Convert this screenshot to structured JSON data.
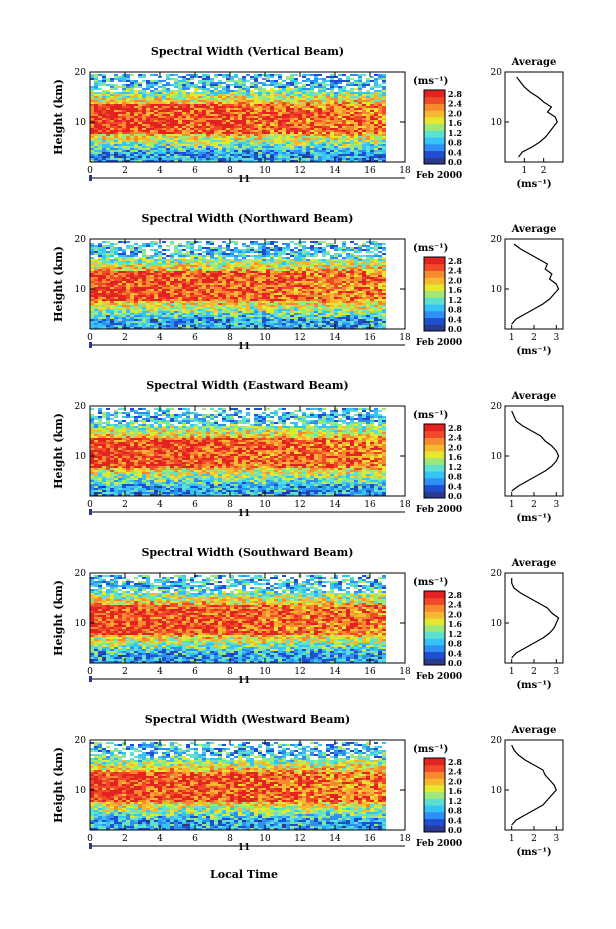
{
  "figure": {
    "date_label": "11",
    "month_year_label": "Feb 2000",
    "xlabel": "Local Time",
    "ylabel": "Height (km)",
    "colorbar_unit": "(ms⁻¹)",
    "average_title": "Average",
    "average_xlabel": "(ms⁻¹)"
  },
  "colors": {
    "colormap": [
      "#2a3a8c",
      "#1f4fd0",
      "#2f8ff5",
      "#35c4f5",
      "#5de0d0",
      "#9ee87a",
      "#e4e830",
      "#f5b830",
      "#f58a2f",
      "#f04a28",
      "#e32222"
    ]
  },
  "chart_data": [
    {
      "type": "heatmap",
      "title": "Spectral Width (Vertical Beam)",
      "xlim": [
        0,
        18
      ],
      "xticks": [
        "0",
        "2",
        "4",
        "6",
        "8",
        "10",
        "12",
        "14",
        "16",
        "18"
      ],
      "ylim": [
        2,
        20
      ],
      "yticks": [
        "10",
        "20"
      ],
      "data_x_end": 16.8,
      "colorbar_ticks": [
        "0.0",
        "0.4",
        "0.8",
        "1.2",
        "1.6",
        "2.0",
        "2.4",
        "2.8"
      ],
      "average_profile": {
        "xlim": [
          0,
          3
        ],
        "xticks": [
          "1",
          "2"
        ],
        "ylim": [
          2,
          20
        ],
        "yticks": [
          "10",
          "20"
        ],
        "height_km": [
          3,
          4,
          5,
          6,
          7,
          8,
          9,
          10,
          11,
          12,
          13,
          14,
          15,
          16,
          17,
          18,
          19
        ],
        "width_ms": [
          0.7,
          0.9,
          1.4,
          1.8,
          2.1,
          2.3,
          2.5,
          2.7,
          2.6,
          2.2,
          2.4,
          2.0,
          1.7,
          1.3,
          1.0,
          0.8,
          0.6
        ]
      }
    },
    {
      "type": "heatmap",
      "title": "Spectral Width (Northward Beam)",
      "xlim": [
        0,
        18
      ],
      "xticks": [
        "0",
        "2",
        "4",
        "6",
        "8",
        "10",
        "12",
        "14",
        "16",
        "18"
      ],
      "ylim": [
        2,
        20
      ],
      "yticks": [
        "10",
        "20"
      ],
      "data_x_end": 16.8,
      "colorbar_ticks": [
        "0.0",
        "0.4",
        "0.8",
        "1.2",
        "1.6",
        "2.0",
        "2.4",
        "2.8"
      ],
      "average_profile": {
        "xlim": [
          0.7,
          3.3
        ],
        "xticks": [
          "1",
          "2",
          "3"
        ],
        "ylim": [
          2,
          20
        ],
        "yticks": [
          "10",
          "20"
        ],
        "height_km": [
          3,
          4,
          5,
          6,
          7,
          8,
          9,
          10,
          11,
          12,
          13,
          14,
          15,
          16,
          17,
          18,
          19
        ],
        "width_ms": [
          1.0,
          1.2,
          1.6,
          2.0,
          2.4,
          2.7,
          2.9,
          3.1,
          3.0,
          2.7,
          2.8,
          2.5,
          2.6,
          2.2,
          1.8,
          1.4,
          1.1
        ]
      }
    },
    {
      "type": "heatmap",
      "title": "Spectral Width (Eastward Beam)",
      "xlim": [
        0,
        18
      ],
      "xticks": [
        "0",
        "2",
        "4",
        "6",
        "8",
        "10",
        "12",
        "14",
        "16",
        "18"
      ],
      "ylim": [
        2,
        20
      ],
      "yticks": [
        "10",
        "20"
      ],
      "data_x_end": 16.8,
      "colorbar_ticks": [
        "0.0",
        "0.4",
        "0.8",
        "1.2",
        "1.6",
        "2.0",
        "2.4",
        "2.8"
      ],
      "average_profile": {
        "xlim": [
          0.7,
          3.3
        ],
        "xticks": [
          "1",
          "2",
          "3"
        ],
        "ylim": [
          2,
          20
        ],
        "yticks": [
          "10",
          "20"
        ],
        "height_km": [
          3,
          4,
          5,
          6,
          7,
          8,
          9,
          10,
          11,
          12,
          13,
          14,
          15,
          16,
          17,
          18,
          19
        ],
        "width_ms": [
          1.0,
          1.3,
          1.7,
          2.1,
          2.5,
          2.8,
          3.0,
          3.1,
          3.0,
          2.8,
          2.5,
          2.3,
          1.9,
          1.5,
          1.2,
          1.1,
          1.0
        ]
      }
    },
    {
      "type": "heatmap",
      "title": "Spectral Width (Southward Beam)",
      "xlim": [
        0,
        18
      ],
      "xticks": [
        "0",
        "2",
        "4",
        "6",
        "8",
        "10",
        "12",
        "14",
        "16",
        "18"
      ],
      "ylim": [
        2,
        20
      ],
      "yticks": [
        "10",
        "20"
      ],
      "data_x_end": 16.8,
      "colorbar_ticks": [
        "0.0",
        "0.4",
        "0.8",
        "1.2",
        "1.6",
        "2.0",
        "2.4",
        "2.8"
      ],
      "average_profile": {
        "xlim": [
          0.7,
          3.3
        ],
        "xticks": [
          "1",
          "2",
          "3"
        ],
        "ylim": [
          2,
          20
        ],
        "yticks": [
          "10",
          "20"
        ],
        "height_km": [
          3,
          4,
          5,
          6,
          7,
          8,
          9,
          10,
          11,
          12,
          13,
          14,
          15,
          16,
          17,
          18,
          19
        ],
        "width_ms": [
          1.0,
          1.2,
          1.6,
          2.0,
          2.4,
          2.7,
          2.9,
          3.0,
          3.1,
          2.8,
          2.6,
          2.2,
          1.8,
          1.4,
          1.1,
          1.0,
          1.0
        ]
      }
    },
    {
      "type": "heatmap",
      "title": "Spectral Width (Westward Beam)",
      "xlim": [
        0,
        18
      ],
      "xticks": [
        "0",
        "2",
        "4",
        "6",
        "8",
        "10",
        "12",
        "14",
        "16",
        "18"
      ],
      "ylim": [
        2,
        20
      ],
      "yticks": [
        "10",
        "20"
      ],
      "data_x_end": 16.8,
      "colorbar_ticks": [
        "0.0",
        "0.4",
        "0.8",
        "1.2",
        "1.6",
        "2.0",
        "2.4",
        "2.8"
      ],
      "average_profile": {
        "xlim": [
          0.7,
          3.3
        ],
        "xticks": [
          "1",
          "2",
          "3"
        ],
        "ylim": [
          2,
          20
        ],
        "yticks": [
          "10",
          "20"
        ],
        "height_km": [
          3,
          4,
          5,
          6,
          7,
          8,
          9,
          10,
          11,
          12,
          13,
          14,
          15,
          16,
          17,
          18,
          19
        ],
        "width_ms": [
          1.0,
          1.2,
          1.6,
          2.0,
          2.4,
          2.6,
          2.8,
          3.0,
          2.9,
          2.7,
          2.5,
          2.4,
          2.0,
          1.6,
          1.3,
          1.1,
          1.0
        ]
      }
    }
  ]
}
